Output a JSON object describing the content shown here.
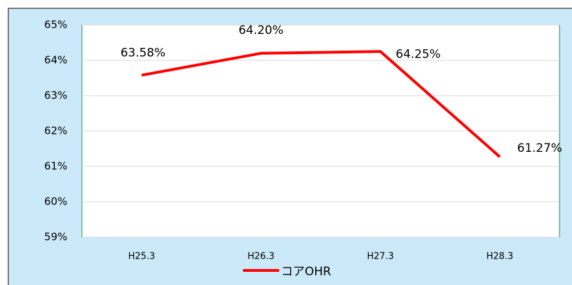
{
  "chart_data": {
    "type": "line",
    "categories": [
      "H25.3",
      "H26.3",
      "H27.3",
      "H28.3"
    ],
    "series": [
      {
        "name": "コアOHR",
        "color": "#ff0000",
        "values": [
          63.58,
          64.2,
          64.25,
          61.27
        ],
        "value_labels": [
          "63.58%",
          "64.20%",
          "64.25%",
          "61.27%"
        ]
      }
    ],
    "ylim": [
      59,
      65
    ],
    "yticks": [
      {
        "value": 59,
        "label": "59%"
      },
      {
        "value": 60,
        "label": "60%"
      },
      {
        "value": 61,
        "label": "61%"
      },
      {
        "value": 62,
        "label": "62%"
      },
      {
        "value": 63,
        "label": "63%"
      },
      {
        "value": 64,
        "label": "64%"
      },
      {
        "value": 65,
        "label": "65%"
      }
    ],
    "grid": true,
    "legend": "bottom"
  }
}
